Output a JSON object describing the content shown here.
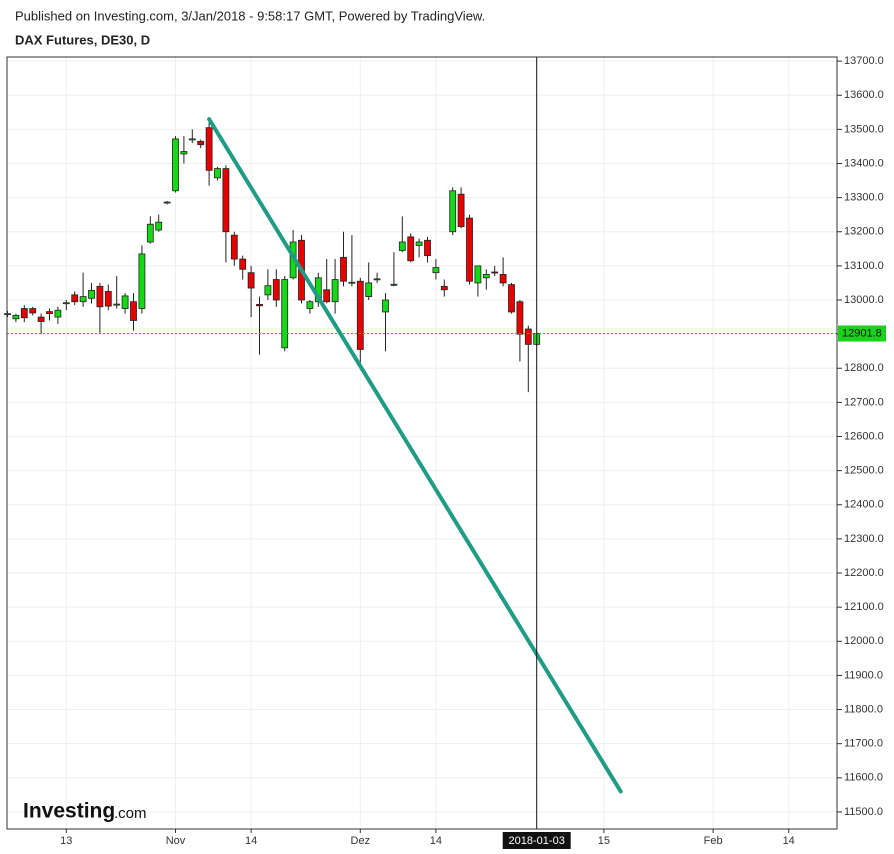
{
  "chart_data": {
    "type": "candlestick",
    "publisher": "Published on Investing.com, 3/Jan/2018 - 9:58:17 GMT, Powered by TradingView.",
    "title": "DAX Futures, DE30, D",
    "logo": {
      "brand": "Investing",
      "suffix": ".com"
    },
    "categories": [
      null,
      null,
      null,
      null,
      null,
      null,
      null,
      "13",
      null,
      null,
      null,
      null,
      null,
      null,
      null,
      null,
      null,
      null,
      null,
      null,
      "Nov",
      null,
      null,
      null,
      null,
      null,
      null,
      null,
      null,
      "14",
      null,
      null,
      null,
      null,
      null,
      null,
      null,
      null,
      null,
      null,
      null,
      null,
      "Dez",
      null,
      null,
      null,
      null,
      null,
      null,
      null,
      null,
      "14",
      null,
      null,
      null,
      null,
      null,
      null,
      null,
      null,
      null,
      null,
      null,
      "2018-01-03",
      null,
      null,
      null,
      null,
      null,
      null,
      null,
      "15",
      null,
      null,
      null,
      null,
      null,
      null,
      null,
      null,
      null,
      null,
      null,
      null,
      "Feb",
      null,
      null,
      null,
      null,
      null,
      null,
      null,
      null,
      "14",
      null,
      null,
      null,
      null,
      null
    ],
    "series": {
      "open": [
        12958,
        12945,
        12975,
        12975,
        12950,
        12966,
        12950,
        12990,
        13015,
        12995,
        13005,
        13040,
        13025,
        12985,
        12975,
        12995,
        12975,
        13170,
        13205,
        13285,
        13320,
        13428,
        13470,
        13465,
        13505,
        13358,
        13385,
        13190,
        13120,
        13080,
        12987,
        13015,
        13060,
        12860,
        13065,
        13175,
        12975,
        12995,
        13030,
        12995,
        13125,
        13050,
        13055,
        13010,
        13060,
        12965,
        13043,
        13145,
        13185,
        13160,
        13175,
        13080,
        13040,
        13200,
        13310,
        13240,
        13050,
        13065,
        13082,
        13075,
        13045,
        12995,
        12915,
        12870,
        null,
        null,
        null,
        null,
        null,
        null,
        null,
        null,
        null,
        null,
        null,
        null,
        null,
        null,
        null,
        null,
        null,
        null,
        null,
        null,
        null,
        null,
        null,
        null,
        null,
        null,
        null,
        null,
        null,
        null,
        null,
        null,
        null,
        null,
        null
      ],
      "high": [
        12968,
        12960,
        12985,
        12980,
        12960,
        12975,
        12980,
        13000,
        13025,
        13080,
        13050,
        13050,
        13045,
        13070,
        13020,
        13020,
        13160,
        13245,
        13250,
        13290,
        13480,
        13480,
        13500,
        13470,
        13520,
        13390,
        13395,
        13200,
        13130,
        13100,
        13010,
        13090,
        13090,
        13070,
        13205,
        13190,
        13000,
        13080,
        13120,
        13120,
        13200,
        13190,
        13065,
        13110,
        13080,
        13020,
        13140,
        13245,
        13195,
        13180,
        13185,
        13120,
        13060,
        13330,
        13330,
        13250,
        13100,
        13090,
        13100,
        13125,
        13050,
        13000,
        12925,
        12905,
        null,
        null,
        null,
        null,
        null,
        null,
        null,
        null,
        null,
        null,
        null,
        null,
        null,
        null,
        null,
        null,
        null,
        null,
        null,
        null,
        null,
        null,
        null,
        null,
        null,
        null,
        null,
        null,
        null,
        null,
        null,
        null,
        null,
        null,
        null
      ],
      "low": [
        12950,
        12935,
        12935,
        12955,
        12900,
        12940,
        12930,
        12970,
        12985,
        12980,
        12990,
        12900,
        12970,
        12975,
        12960,
        12910,
        12960,
        13165,
        13200,
        13280,
        13315,
        13400,
        13460,
        13445,
        13335,
        13350,
        13110,
        13100,
        13060,
        12950,
        12840,
        13000,
        12980,
        12850,
        13060,
        12990,
        12960,
        12980,
        12990,
        12960,
        13040,
        13040,
        12810,
        13000,
        13050,
        12850,
        13040,
        13140,
        13110,
        13125,
        13110,
        13060,
        13010,
        13190,
        13210,
        13045,
        13010,
        13030,
        13070,
        13040,
        12960,
        12820,
        12730,
        12865,
        null,
        null,
        null,
        null,
        null,
        null,
        null,
        null,
        null,
        null,
        null,
        null,
        null,
        null,
        null,
        null,
        null,
        null,
        null,
        null,
        null,
        null,
        null,
        null,
        null,
        null,
        null,
        null,
        null,
        null,
        null,
        null,
        null,
        null,
        null
      ],
      "close": [
        12960,
        12955,
        12948,
        12962,
        12937,
        12960,
        12970,
        12992,
        12995,
        13010,
        13028,
        12980,
        12982,
        12988,
        13012,
        12940,
        13135,
        13222,
        13228,
        13287,
        13472,
        13435,
        13472,
        13455,
        13380,
        13385,
        13200,
        13120,
        13090,
        13035,
        12983,
        13042,
        13000,
        13060,
        13170,
        13000,
        12995,
        13065,
        12995,
        13060,
        13055,
        13052,
        12855,
        13050,
        13062,
        13000,
        13046,
        13170,
        13115,
        13170,
        13130,
        13095,
        13030,
        13320,
        13215,
        13055,
        13100,
        13075,
        13080,
        13050,
        12965,
        12900,
        12870,
        12901.8,
        null,
        null,
        null,
        null,
        null,
        null,
        null,
        null,
        null,
        null,
        null,
        null,
        null,
        null,
        null,
        null,
        null,
        null,
        null,
        null,
        null,
        null,
        null,
        null,
        null,
        null,
        null,
        null,
        null,
        null,
        null,
        null,
        null,
        null,
        null
      ],
      "up_color": "#16d916",
      "down_color": "#e80000"
    },
    "trendline": {
      "x": [
        24,
        73
      ],
      "y": [
        13530,
        11560
      ],
      "color": "#1f9c84"
    },
    "crosshair": true,
    "last_price_color": "#19d219",
    "ylim": [
      11450,
      13712
    ],
    "yticks": [
      {
        "value": 13700,
        "label": "13700.0"
      },
      {
        "value": 13600,
        "label": "13600.0"
      },
      {
        "value": 13500,
        "label": "13500.0"
      },
      {
        "value": 13400,
        "label": "13400.0"
      },
      {
        "value": 13300,
        "label": "13300.0"
      },
      {
        "value": 13200,
        "label": "13200.0"
      },
      {
        "value": 13100,
        "label": "13100.0"
      },
      {
        "value": 13000,
        "label": "13000.0"
      },
      {
        "value": 12900,
        "label": "12900.0"
      },
      {
        "value": 12800,
        "label": "12800.0"
      },
      {
        "value": 12700,
        "label": "12700.0"
      },
      {
        "value": 12600,
        "label": "12600.0"
      },
      {
        "value": 12500,
        "label": "12500.0"
      },
      {
        "value": 12400,
        "label": "12400.0"
      },
      {
        "value": 12300,
        "label": "12300.0"
      },
      {
        "value": 12200,
        "label": "12200.0"
      },
      {
        "value": 12100,
        "label": "12100.0"
      },
      {
        "value": 12000,
        "label": "12000.0"
      },
      {
        "value": 11900,
        "label": "11900.0"
      },
      {
        "value": 11800,
        "label": "11800.0"
      },
      {
        "value": 11700,
        "label": "11700.0"
      },
      {
        "value": 11600,
        "label": "11600.0"
      },
      {
        "value": 11500,
        "label": "11500.0"
      }
    ],
    "grid": true
  }
}
